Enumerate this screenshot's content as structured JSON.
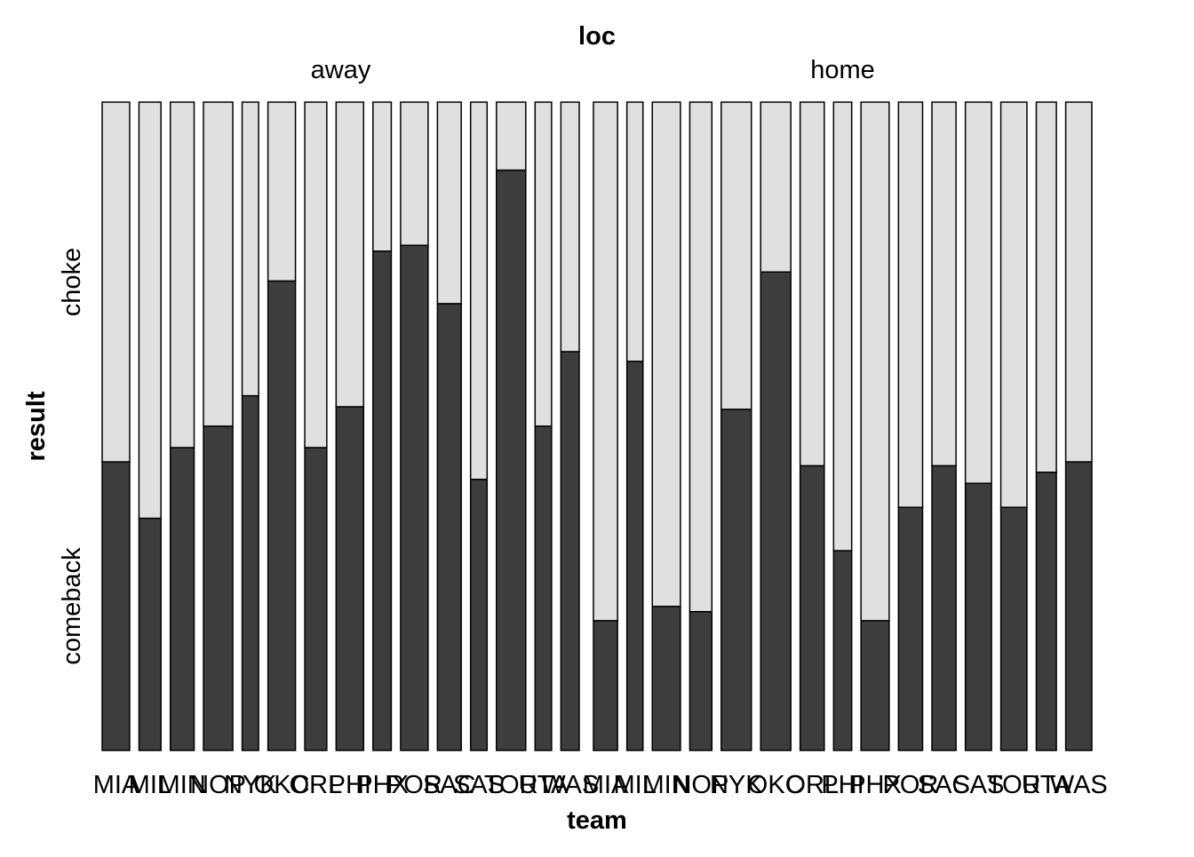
{
  "chart_data": {
    "type": "mosaic",
    "title": "",
    "column_variable": "loc",
    "xlabel": "team",
    "ylabel": "result",
    "y_levels": [
      "comeback",
      "choke"
    ],
    "colors": {
      "comeback": "#3d3d3d",
      "choke": "#e0e0e0",
      "border": "#000000"
    },
    "panels": [
      {
        "name": "away",
        "bars": [
          {
            "team": "MIA",
            "width": 15,
            "comeback_share": 0.445
          },
          {
            "team": "MIL",
            "width": 12,
            "comeback_share": 0.358
          },
          {
            "team": "MIN",
            "width": 13,
            "comeback_share": 0.467
          },
          {
            "team": "NOP",
            "width": 16,
            "comeback_share": 0.5
          },
          {
            "team": "NYK",
            "width": 9,
            "comeback_share": 0.547
          },
          {
            "team": "OKC",
            "width": 15,
            "comeback_share": 0.724
          },
          {
            "team": "ORL",
            "width": 12,
            "comeback_share": 0.467
          },
          {
            "team": "PHI",
            "width": 15,
            "comeback_share": 0.53
          },
          {
            "team": "PHX",
            "width": 10,
            "comeback_share": 0.77
          },
          {
            "team": "POR",
            "width": 15,
            "comeback_share": 0.779
          },
          {
            "team": "SAC",
            "width": 13,
            "comeback_share": 0.689
          },
          {
            "team": "SAS",
            "width": 9,
            "comeback_share": 0.418
          },
          {
            "team": "TOR",
            "width": 16,
            "comeback_share": 0.895
          },
          {
            "team": "UTA",
            "width": 9,
            "comeback_share": 0.5
          },
          {
            "team": "WAS",
            "width": 10,
            "comeback_share": 0.615
          }
        ]
      },
      {
        "name": "home",
        "bars": [
          {
            "team": "MIA",
            "width": 12,
            "comeback_share": 0.2
          },
          {
            "team": "MIL",
            "width": 8,
            "comeback_share": 0.6
          },
          {
            "team": "MIN",
            "width": 14,
            "comeback_share": 0.222
          },
          {
            "team": "NOP",
            "width": 11,
            "comeback_share": 0.214
          },
          {
            "team": "NYK",
            "width": 15,
            "comeback_share": 0.526
          },
          {
            "team": "OKC",
            "width": 15,
            "comeback_share": 0.738
          },
          {
            "team": "ORL",
            "width": 12,
            "comeback_share": 0.439
          },
          {
            "team": "PHI",
            "width": 9,
            "comeback_share": 0.308
          },
          {
            "team": "PHX",
            "width": 14,
            "comeback_share": 0.2
          },
          {
            "team": "POR",
            "width": 12,
            "comeback_share": 0.375
          },
          {
            "team": "SAC",
            "width": 12,
            "comeback_share": 0.439
          },
          {
            "team": "SAS",
            "width": 13,
            "comeback_share": 0.412
          },
          {
            "team": "TOR",
            "width": 13,
            "comeback_share": 0.375
          },
          {
            "team": "UTA",
            "width": 10,
            "comeback_share": 0.429
          },
          {
            "team": "WAS",
            "width": 13,
            "comeback_share": 0.445
          }
        ]
      }
    ]
  }
}
